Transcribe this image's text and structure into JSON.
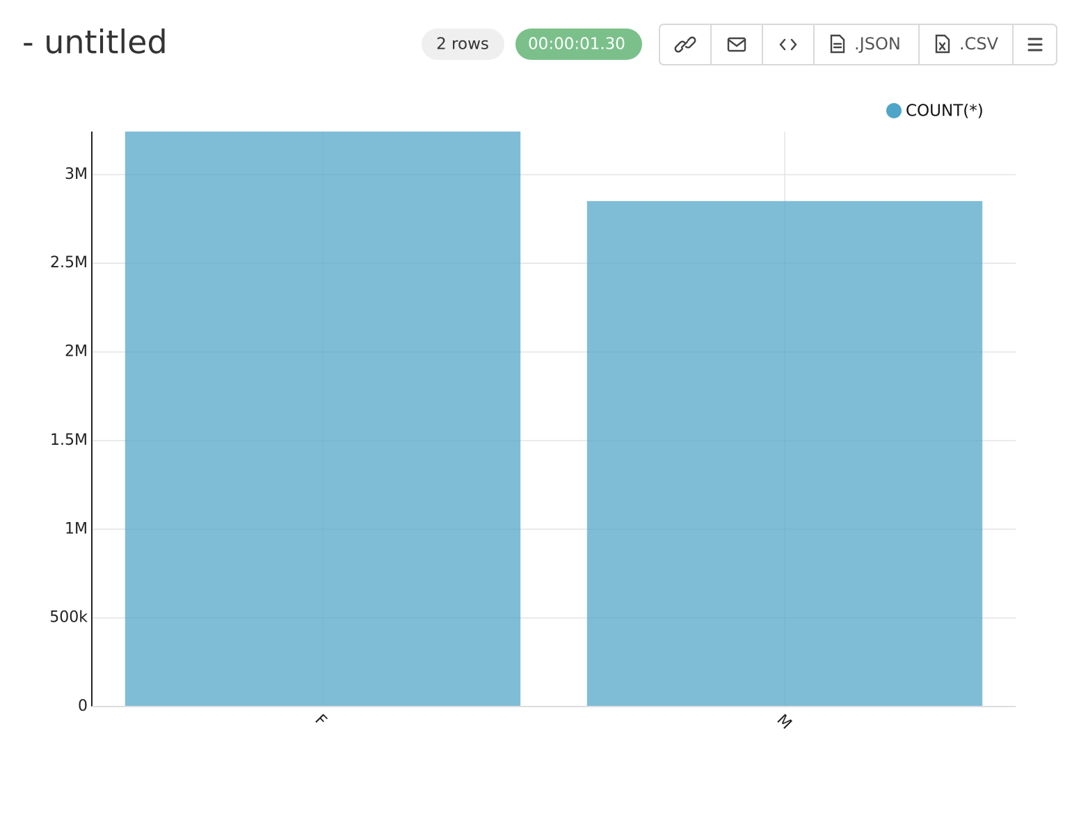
{
  "header": {
    "title": "- untitled",
    "row_count": "2 rows",
    "duration": "00:00:01.30",
    "json_button": ".JSON",
    "csv_button": ".CSV"
  },
  "chart_data": {
    "type": "bar",
    "categories": [
      "F",
      "M"
    ],
    "series": [
      {
        "name": "COUNT(*)",
        "color": "#4fa5c8",
        "values": [
          3243000,
          2851000
        ]
      }
    ],
    "ylim": [
      0,
      3243000
    ],
    "yticks": [
      0,
      {
        "value": 500000,
        "label": "500k"
      },
      {
        "value": 1000000,
        "label": "1M"
      },
      {
        "value": 1500000,
        "label": "1.5M"
      },
      {
        "value": 2000000,
        "label": "2M"
      },
      {
        "value": 2500000,
        "label": "2.5M"
      },
      {
        "value": 3000000,
        "label": "3M"
      }
    ],
    "grid": true,
    "legend": "top-right"
  }
}
